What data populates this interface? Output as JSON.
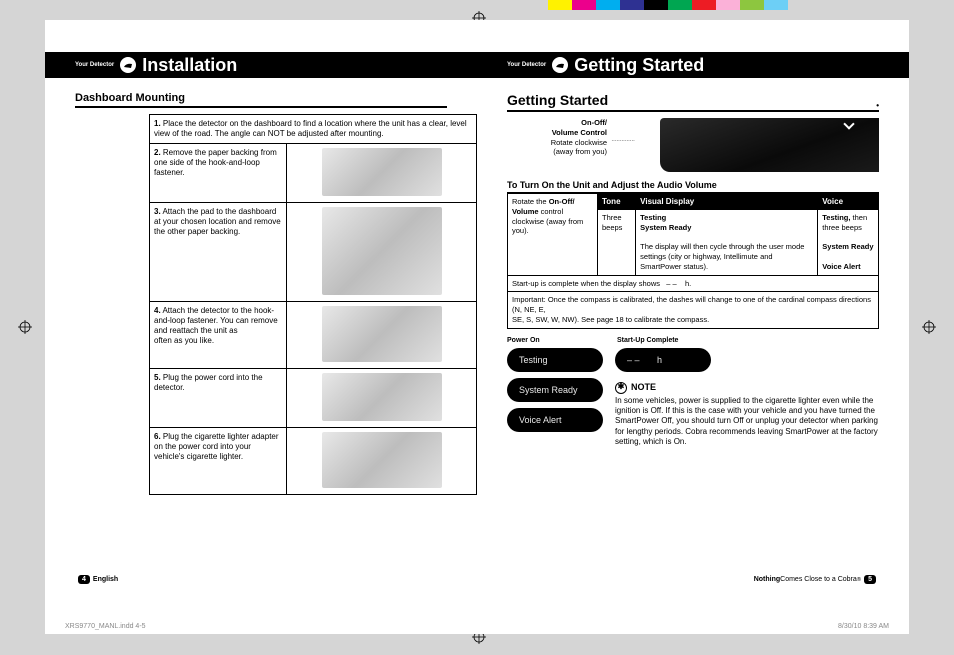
{
  "colorBars": [
    "#fff200",
    "#ec008c",
    "#00aeef",
    "#2e3192",
    "#000000",
    "#00a651",
    "#ed1c24",
    "#fbb1d8",
    "#8dc63f",
    "#6dcff6"
  ],
  "left": {
    "barSub": "Your Detector",
    "barTitle": "Installation",
    "sectionHead": "Dashboard Mounting",
    "steps": [
      {
        "n": "1.",
        "t": "Place the detector on the dashboard to find a location where the unit has a clear, level view of the road. The angle can NOT be adjusted after mounting.",
        "img": false,
        "h": 0
      },
      {
        "n": "2.",
        "t": "Remove the paper backing from one side of the hook-and-loop fastener.",
        "img": true,
        "h": 48
      },
      {
        "n": "3.",
        "t": "Attach the pad to the dashboard at your chosen location and remove the other paper backing.",
        "img": true,
        "h": 88
      },
      {
        "n": "4.",
        "t": "Attach the detector to the hook-and-loop fastener. You can remove and reattach the unit as\noften as you like.",
        "img": true,
        "h": 56
      },
      {
        "n": "5.",
        "t": "Plug the power cord into the detector.",
        "img": true,
        "h": 48
      },
      {
        "n": "6.",
        "t": "Plug the cigarette lighter adapter on the power cord into your vehicle's cigarette lighter.",
        "img": true,
        "h": 56
      }
    ],
    "footerNum": "4",
    "footerText": "English"
  },
  "right": {
    "barSub": "Your Detector",
    "barTitle": "Getting Started",
    "sectionTitle": "Getting Started",
    "deviceLabel1": "On-Off/",
    "deviceLabel2": "Volume Control",
    "deviceLabel3": "Rotate clockwise",
    "deviceLabel4": "(away from you)",
    "subHead": "To Turn On the Unit and Adjust the Audio Volume",
    "th1": "Tone",
    "th2": "Visual Display",
    "th3": "Voice",
    "rotate": "Rotate the <b>On-Off/ Volume</b> control clockwise (away from you).",
    "tone": "Three beeps",
    "visual": "<b>Testing</b><br><b>System Ready</b><br><br>The display will then cycle through the user mode settings (city or highway, Intellimute and SmartPower status).",
    "voice": "<b>Testing,</b> then three beeps<br><br><b>System Ready</b><br><br><b>Voice Alert</b>",
    "startup": "Start-up is complete when the display shows   – –    h.",
    "important": "Important: Once the compass is calibrated, the dashes will change to one of the cardinal compass directions (N, NE, E,\nSE, S, SW, W, NW). See page 18 to calibrate the compass.",
    "lcdLabel1": "Power On",
    "lcdLabel2": "Start-Up Complete",
    "lcd1": "Testing",
    "lcd2": "System Ready",
    "lcd3": "Voice Alert",
    "lcd4": "– –       h",
    "noteTitle": "NOTE",
    "noteBody": "In some vehicles, power is supplied to the cigarette lighter even while the ignition is Off. If this is the case with your vehicle and you have turned the SmartPower Off, you should turn Off or unplug your detector when parking for lengthy periods. Cobra recommends leaving SmartPower at the factory setting, which is On.",
    "footerText": "Nothing",
    "footerText2": " Comes Close to a Cobra",
    "footerSup": "®",
    "footerNum": "5"
  },
  "slugL": "XRS9770_MANL.indd   4-5",
  "slugR": "8/30/10   8:39 AM"
}
